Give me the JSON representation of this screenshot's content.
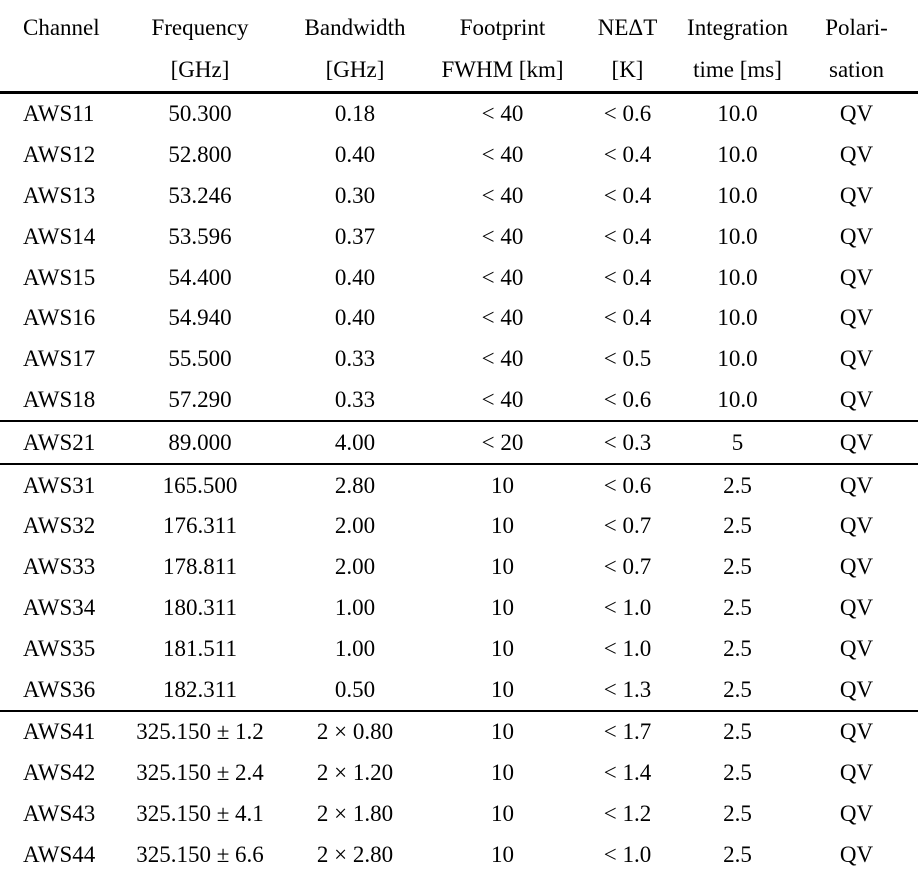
{
  "colors": {
    "background": "#ffffff",
    "text": "#000000",
    "rule": "#000000"
  },
  "table": {
    "columns": [
      {
        "line1": "Channel",
        "line2": ""
      },
      {
        "line1": "Frequency",
        "line2": "[GHz]"
      },
      {
        "line1": "Bandwidth",
        "line2": "[GHz]"
      },
      {
        "line1": "Footprint",
        "line2": "FWHM [km]"
      },
      {
        "line1": "NEΔT",
        "line2": "[K]"
      },
      {
        "line1": "Integration",
        "line2": "time [ms]"
      },
      {
        "line1": "Polari-",
        "line2": "sation"
      }
    ],
    "groups": [
      {
        "rows": [
          [
            "AWS11",
            "50.300",
            "0.18",
            "< 40",
            "< 0.6",
            "10.0",
            "QV"
          ],
          [
            "AWS12",
            "52.800",
            "0.40",
            "< 40",
            "< 0.4",
            "10.0",
            "QV"
          ],
          [
            "AWS13",
            "53.246",
            "0.30",
            "< 40",
            "< 0.4",
            "10.0",
            "QV"
          ],
          [
            "AWS14",
            "53.596",
            "0.37",
            "< 40",
            "< 0.4",
            "10.0",
            "QV"
          ],
          [
            "AWS15",
            "54.400",
            "0.40",
            "< 40",
            "< 0.4",
            "10.0",
            "QV"
          ],
          [
            "AWS16",
            "54.940",
            "0.40",
            "< 40",
            "< 0.4",
            "10.0",
            "QV"
          ],
          [
            "AWS17",
            "55.500",
            "0.33",
            "< 40",
            "< 0.5",
            "10.0",
            "QV"
          ],
          [
            "AWS18",
            "57.290",
            "0.33",
            "< 40",
            "< 0.6",
            "10.0",
            "QV"
          ]
        ]
      },
      {
        "rows": [
          [
            "AWS21",
            "89.000",
            "4.00",
            "< 20",
            "< 0.3",
            "5",
            "QV"
          ]
        ]
      },
      {
        "rows": [
          [
            "AWS31",
            "165.500",
            "2.80",
            "10",
            "< 0.6",
            "2.5",
            "QV"
          ],
          [
            "AWS32",
            "176.311",
            "2.00",
            "10",
            "< 0.7",
            "2.5",
            "QV"
          ],
          [
            "AWS33",
            "178.811",
            "2.00",
            "10",
            "< 0.7",
            "2.5",
            "QV"
          ],
          [
            "AWS34",
            "180.311",
            "1.00",
            "10",
            "< 1.0",
            "2.5",
            "QV"
          ],
          [
            "AWS35",
            "181.511",
            "1.00",
            "10",
            "< 1.0",
            "2.5",
            "QV"
          ],
          [
            "AWS36",
            "182.311",
            "0.50",
            "10",
            "< 1.3",
            "2.5",
            "QV"
          ]
        ]
      },
      {
        "rows": [
          [
            "AWS41",
            "325.150 ± 1.2",
            "2 × 0.80",
            "10",
            "< 1.7",
            "2.5",
            "QV"
          ],
          [
            "AWS42",
            "325.150 ± 2.4",
            "2 × 1.20",
            "10",
            "< 1.4",
            "2.5",
            "QV"
          ],
          [
            "AWS43",
            "325.150 ± 4.1",
            "2 × 1.80",
            "10",
            "< 1.2",
            "2.5",
            "QV"
          ],
          [
            "AWS44",
            "325.150 ± 6.6",
            "2 × 2.80",
            "10",
            "< 1.0",
            "2.5",
            "QV"
          ]
        ]
      }
    ]
  }
}
